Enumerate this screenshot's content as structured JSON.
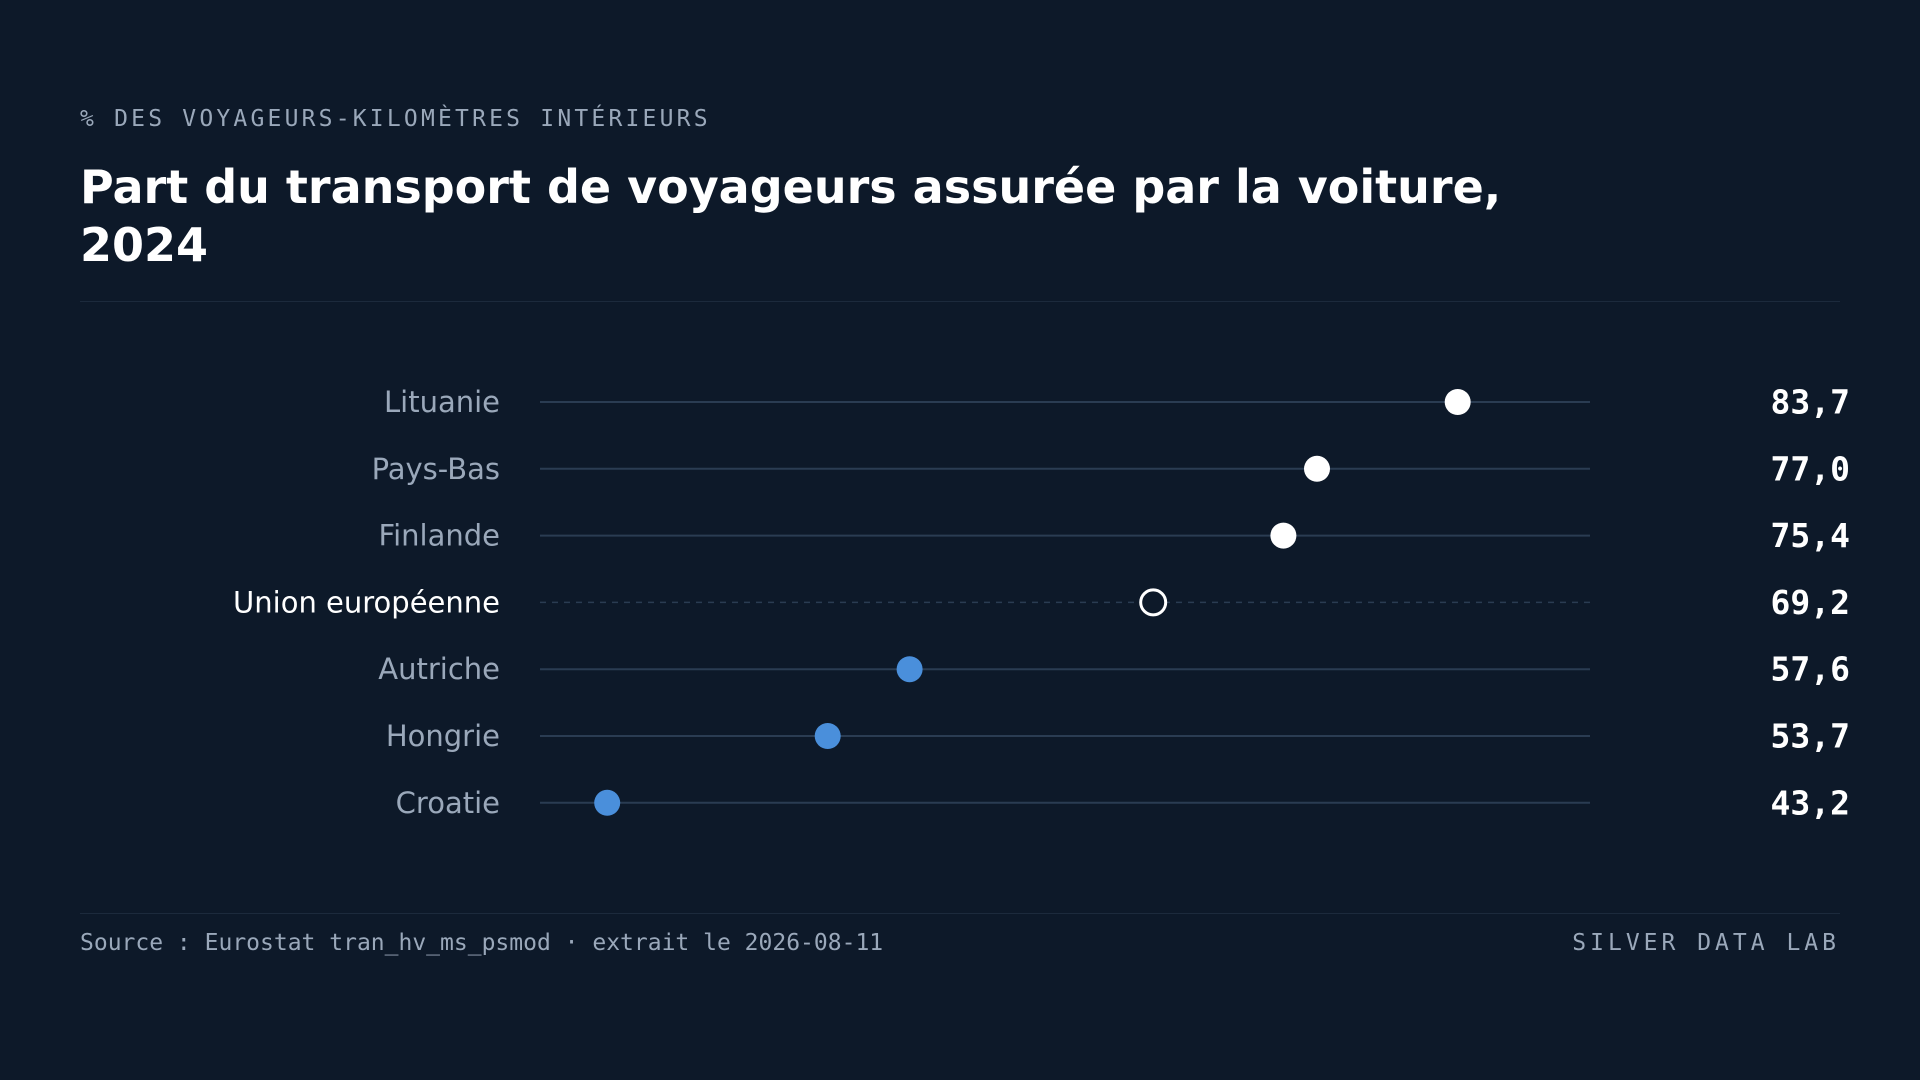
{
  "header": {
    "kicker": "% DES VOYAGEURS-KILOMÈTRES INTÉRIEURS",
    "title": "Part du transport de voyageurs assurée par la voiture, 2024"
  },
  "footer": {
    "source": "Source : Eurostat tran_hv_ms_psmod · extrait le 2026-08-11",
    "brand": "SILVER DATA LAB"
  },
  "colors": {
    "background": "#0d1929",
    "highlight_dot": "#ffffff",
    "low_dot": "#4a8fdb",
    "track": "#2a3c52",
    "label": "#9aa8ba",
    "reference_label": "#ffffff",
    "value": "#ffffff"
  },
  "chart_data": {
    "type": "dot",
    "title": "Part du transport de voyageurs assurée par la voiture, 2024",
    "xlabel": "",
    "ylabel": "",
    "xlim": [
      40,
      90
    ],
    "grid": false,
    "legend": "none",
    "decimal_separator": ",",
    "categories": [
      "Lituanie",
      "Pays-Bas",
      "Finlande",
      "Union européenne",
      "Autriche",
      "Hongrie",
      "Croatie"
    ],
    "values": [
      83.7,
      77.0,
      75.4,
      69.2,
      57.6,
      53.7,
      43.2
    ],
    "value_labels": [
      "83,7",
      "77,0",
      "75,4",
      "69,2",
      "57,6",
      "53,7",
      "43,2"
    ],
    "reference": "Union européenne",
    "marker_styles": [
      "above",
      "above",
      "above",
      "reference",
      "below",
      "below",
      "below"
    ]
  }
}
